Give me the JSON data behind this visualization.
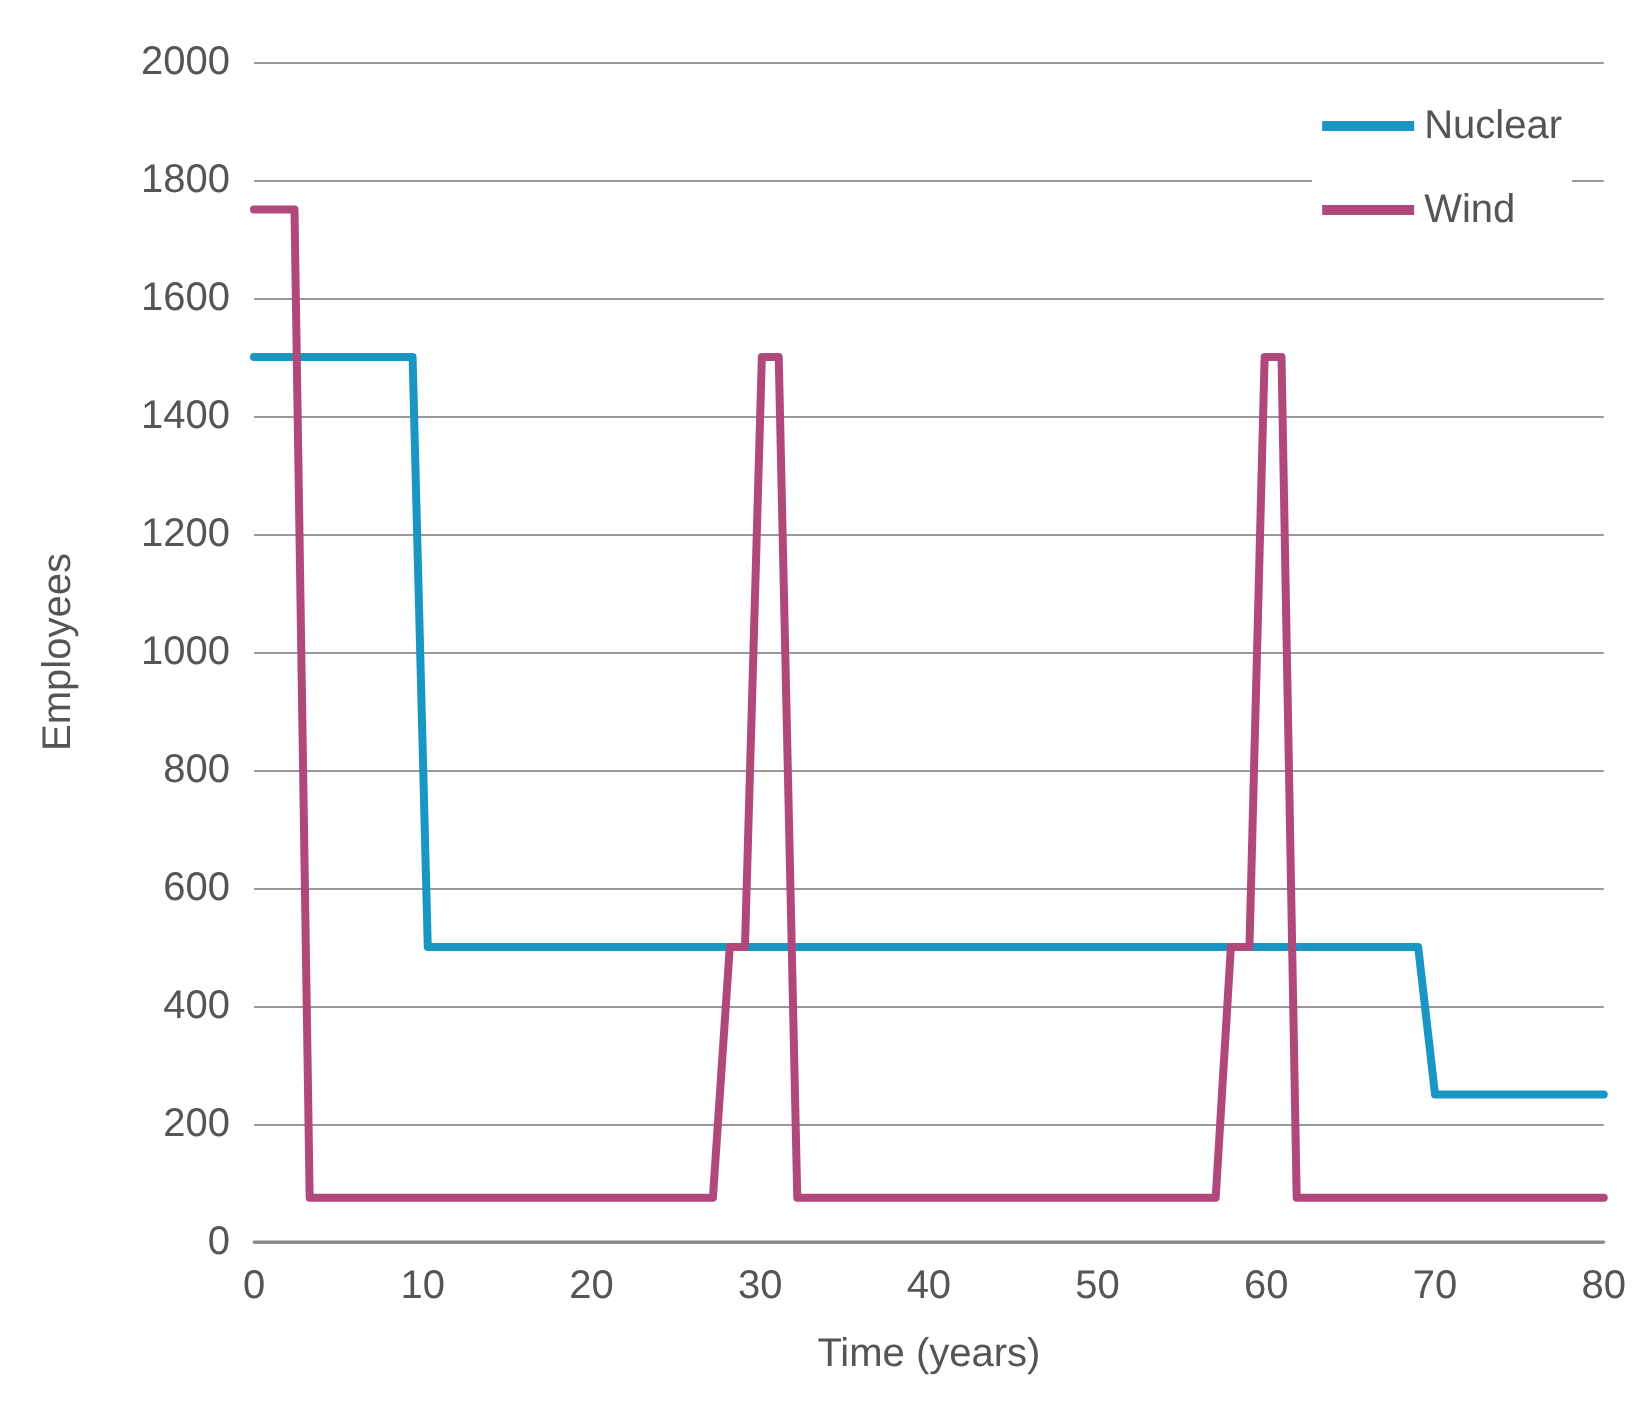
{
  "chart_data": {
    "type": "line",
    "xlabel": "Time (years)",
    "ylabel": "Employees",
    "xlim": [
      0,
      80
    ],
    "xticks": [
      0,
      10,
      20,
      30,
      40,
      50,
      60,
      70,
      80
    ],
    "ylim": [
      0,
      2000
    ],
    "yticks": [
      0,
      200,
      400,
      600,
      800,
      1000,
      1200,
      1400,
      1600,
      1800,
      2000
    ],
    "grid": "y",
    "legend": "top right",
    "marker": "none",
    "line_style": "solid",
    "series": [
      {
        "name": "Nuclear",
        "color": "#1a96c4",
        "x": [
          0,
          9.4,
          10.3,
          69,
          70,
          80
        ],
        "values": [
          1500,
          1500,
          500,
          500,
          250,
          250
        ]
      },
      {
        "name": "Wind",
        "color": "#b0487c",
        "x": [
          0,
          2.4,
          3.3,
          27.2,
          28.2,
          29.1,
          30.1,
          31.1,
          32.2,
          57,
          57.9,
          59,
          59.9,
          60.9,
          61.8,
          80
        ],
        "values": [
          1750,
          1750,
          75,
          75,
          500,
          500,
          1500,
          1500,
          75,
          75,
          500,
          500,
          1500,
          1500,
          75,
          75
        ]
      }
    ]
  }
}
